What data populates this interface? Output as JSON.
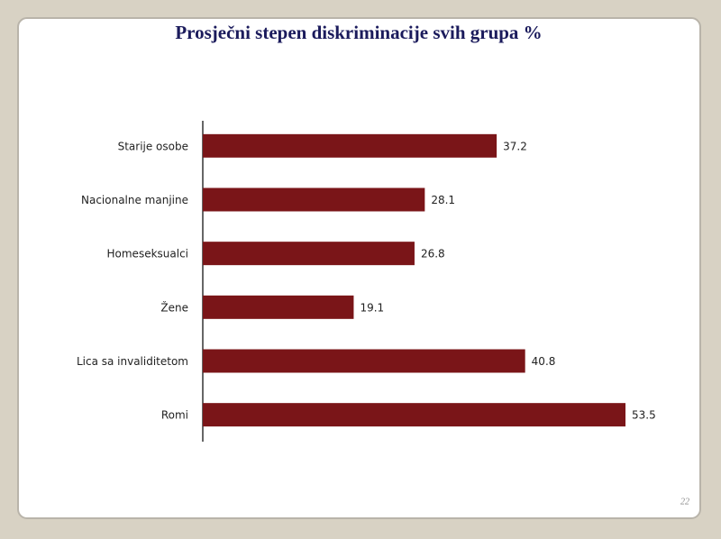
{
  "chart_data": {
    "type": "hbar",
    "title": "Prosječni stepen diskriminacije svih grupa %",
    "categories": [
      "Starije osobe",
      "Nacionalne manjine",
      "Homeseksualci",
      "Žene",
      "Lica sa invaliditetom",
      "Romi"
    ],
    "values": [
      37.2,
      28.1,
      26.8,
      19.1,
      40.8,
      53.5
    ],
    "color": "#7a1518",
    "xlim": [
      0,
      60
    ]
  },
  "slide_number": 22
}
